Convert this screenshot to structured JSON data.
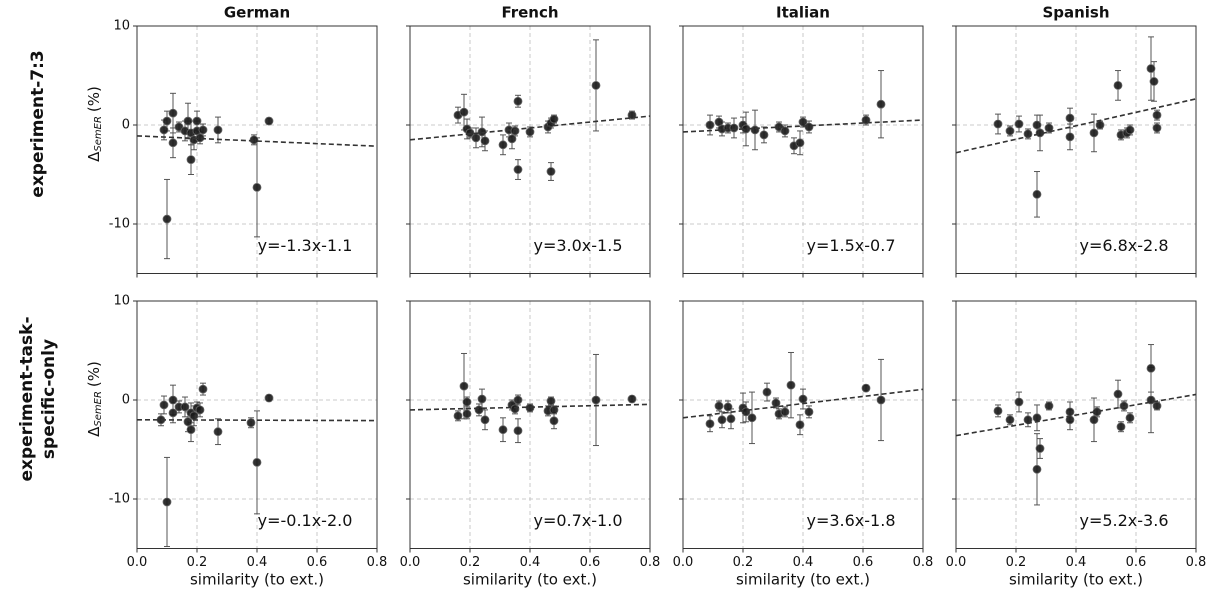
{
  "chart_data": [
    {
      "type": "scatter",
      "title": "German",
      "row_label": [
        "experiment-7:3"
      ],
      "ylabel": [
        "Δ",
        "SemER",
        "(%)"
      ],
      "x": [
        0.09,
        0.1,
        0.1,
        0.12,
        0.12,
        0.14,
        0.16,
        0.17,
        0.18,
        0.18,
        0.19,
        0.2,
        0.2,
        0.21,
        0.22,
        0.27,
        0.39,
        0.4,
        0.44
      ],
      "y": [
        -0.5,
        0.4,
        -9.5,
        1.2,
        -1.8,
        -0.2,
        -0.6,
        0.4,
        -3.5,
        -0.8,
        -1.5,
        0.4,
        -0.6,
        -1.3,
        -0.5,
        -0.5,
        -1.5,
        -6.3,
        0.4
      ],
      "error": [
        1,
        1,
        4,
        2,
        1.5,
        0.5,
        1,
        1.8,
        1.5,
        1.2,
        1,
        1,
        1,
        0.6,
        0.6,
        1.3,
        0.5,
        5,
        0.3
      ],
      "fit": {
        "slope": -1.3,
        "intercept": -1.1
      },
      "annotation": "y=-1.3x-1.1",
      "xlim": [
        0,
        0.8
      ],
      "ylim": [
        -15,
        10
      ],
      "xticks": [
        {
          "value": 0,
          "label": "0.0"
        },
        0.2,
        0.4,
        0.6,
        0.8
      ],
      "yticks": [
        -10,
        0,
        10
      ],
      "grid": true,
      "color": "#1a1a1a"
    },
    {
      "type": "scatter",
      "title": "French",
      "x": [
        0.16,
        0.18,
        0.19,
        0.2,
        0.22,
        0.24,
        0.25,
        0.31,
        0.33,
        0.34,
        0.35,
        0.36,
        0.36,
        0.4,
        0.46,
        0.47,
        0.48,
        0.47,
        0.62,
        0.74
      ],
      "y": [
        1.0,
        1.3,
        -0.4,
        -0.8,
        -1.3,
        -0.7,
        -1.6,
        -2.0,
        -0.5,
        -1.4,
        -0.6,
        -4.5,
        2.4,
        -0.7,
        -0.2,
        0.2,
        0.6,
        -4.7,
        4.0,
        1.0
      ],
      "error": [
        0.8,
        1.8,
        1,
        0.5,
        1,
        1.5,
        1,
        1,
        0.7,
        1,
        0.5,
        1,
        0.6,
        0.5,
        0.6,
        0.5,
        0.4,
        0.9,
        4.6,
        0.4
      ],
      "fit": {
        "slope": 3.0,
        "intercept": -1.5
      },
      "annotation": "y=3.0x-1.5",
      "xlim": [
        0,
        0.8
      ],
      "ylim": [
        -15,
        10
      ],
      "xticks": [
        {
          "value": 0,
          "label": "0.0"
        },
        0.2,
        0.4,
        0.6,
        0.8
      ],
      "yticks": [
        -10,
        0,
        10
      ],
      "grid": true,
      "color": "#1a1a1a"
    },
    {
      "type": "scatter",
      "title": "Italian",
      "x": [
        0.09,
        0.12,
        0.13,
        0.15,
        0.17,
        0.2,
        0.21,
        0.24,
        0.27,
        0.32,
        0.34,
        0.37,
        0.39,
        0.4,
        0.42,
        0.61,
        0.66
      ],
      "y": [
        0,
        0.3,
        -0.4,
        -0.3,
        -0.3,
        0,
        -0.4,
        -0.5,
        -1.0,
        -0.2,
        -0.6,
        -2.1,
        -1.8,
        0.3,
        -0.2,
        0.5,
        2.1
      ],
      "error": [
        1,
        0.6,
        0.7,
        0.5,
        1,
        0.8,
        1.7,
        2,
        0.8,
        0.5,
        0.6,
        0.8,
        1.2,
        0.5,
        0.6,
        0.5,
        3.4
      ],
      "fit": {
        "slope": 1.5,
        "intercept": -0.7
      },
      "annotation": "y=1.5x-0.7",
      "xlim": [
        0,
        0.8
      ],
      "ylim": [
        -15,
        10
      ],
      "xticks": [
        {
          "value": 0,
          "label": "0.0"
        },
        0.2,
        0.4,
        0.6,
        0.8
      ],
      "yticks": [
        -10,
        0,
        10
      ],
      "grid": true,
      "color": "#1a1a1a"
    },
    {
      "type": "scatter",
      "title": "Spanish",
      "x": [
        0.14,
        0.18,
        0.21,
        0.24,
        0.27,
        0.27,
        0.28,
        0.31,
        0.38,
        0.38,
        0.46,
        0.48,
        0.54,
        0.55,
        0.57,
        0.58,
        0.65,
        0.66,
        0.67,
        0.67
      ],
      "y": [
        0.1,
        -0.6,
        0.1,
        -0.9,
        -7.0,
        0,
        -0.8,
        -0.3,
        0.7,
        -1.2,
        -0.8,
        0,
        4.0,
        -1.0,
        -0.8,
        -0.5,
        5.7,
        4.4,
        1.0,
        -0.3
      ],
      "error": [
        1,
        0.5,
        0.8,
        0.5,
        2.3,
        1,
        1.8,
        0.5,
        1,
        1.3,
        1.9,
        0.4,
        1.5,
        0.5,
        0.5,
        0.5,
        3.2,
        2,
        0.5,
        0.5
      ],
      "fit": {
        "slope": 6.8,
        "intercept": -2.8
      },
      "annotation": "y=6.8x-2.8",
      "xlim": [
        0,
        0.8
      ],
      "ylim": [
        -15,
        10
      ],
      "xticks": [
        {
          "value": 0,
          "label": "0.0"
        },
        0.2,
        0.4,
        0.6,
        0.8
      ],
      "yticks": [
        -10,
        0,
        10
      ],
      "grid": true,
      "color": "#1a1a1a"
    },
    {
      "type": "scatter",
      "row_label": [
        "experiment-task-",
        "specific-only"
      ],
      "ylabel": [
        "Δ",
        "SemER",
        "(%)"
      ],
      "xlabel": "similarity (to ext.)",
      "x": [
        0.09,
        0.08,
        0.1,
        0.12,
        0.12,
        0.14,
        0.16,
        0.17,
        0.18,
        0.18,
        0.19,
        0.2,
        0.21,
        0.22,
        0.27,
        0.38,
        0.4,
        0.44
      ],
      "y": [
        -0.5,
        -2.0,
        -10.3,
        0,
        -1.3,
        -0.7,
        -0.7,
        -2.2,
        -3.0,
        -1.3,
        -1.6,
        -0.8,
        -1.0,
        1.1,
        -3.2,
        -2.3,
        -6.3,
        0.2
      ],
      "error": [
        0.9,
        0.6,
        4.5,
        1.5,
        1,
        0.6,
        1,
        1,
        1.2,
        1,
        1,
        0.6,
        0.7,
        0.6,
        1.3,
        0.5,
        5.2,
        0.3
      ],
      "fit": {
        "slope": -0.1,
        "intercept": -2.0
      },
      "annotation": "y=-0.1x-2.0",
      "xlim": [
        0,
        0.8
      ],
      "ylim": [
        -15,
        10
      ],
      "xticks": [
        {
          "value": 0,
          "label": "0.0"
        },
        0.2,
        0.4,
        0.6,
        0.8
      ],
      "yticks": [
        -10,
        0,
        10
      ],
      "grid": true,
      "color": "#1a1a1a"
    },
    {
      "type": "scatter",
      "xlabel": "similarity (to ext.)",
      "x": [
        0.16,
        0.18,
        0.19,
        0.19,
        0.23,
        0.24,
        0.25,
        0.31,
        0.34,
        0.35,
        0.36,
        0.36,
        0.4,
        0.46,
        0.47,
        0.48,
        0.48,
        0.62,
        0.74
      ],
      "y": [
        -1.6,
        1.4,
        -0.2,
        -1.4,
        -1.0,
        0.1,
        -2.0,
        -3.0,
        -0.5,
        -0.9,
        0,
        -3.1,
        -0.8,
        -1.1,
        -0.1,
        -2.1,
        -1.0,
        0,
        0.1
      ],
      "error": [
        0.5,
        3.3,
        0.5,
        0.5,
        0.6,
        1,
        1,
        1.2,
        0.5,
        0.5,
        0.5,
        1.2,
        0.4,
        0.5,
        0.4,
        0.8,
        0.4,
        4.6,
        0.3
      ],
      "fit": {
        "slope": 0.7,
        "intercept": -1.0
      },
      "annotation": "y=0.7x-1.0",
      "xlim": [
        0,
        0.8
      ],
      "ylim": [
        -15,
        10
      ],
      "xticks": [
        {
          "value": 0,
          "label": "0.0"
        },
        0.2,
        0.4,
        0.6,
        0.8
      ],
      "yticks": [
        -10,
        0,
        10
      ],
      "grid": true,
      "color": "#1a1a1a"
    },
    {
      "type": "scatter",
      "xlabel": "similarity (to ext.)",
      "x": [
        0.09,
        0.12,
        0.13,
        0.15,
        0.16,
        0.2,
        0.21,
        0.23,
        0.28,
        0.31,
        0.32,
        0.34,
        0.36,
        0.39,
        0.4,
        0.42,
        0.61,
        0.66
      ],
      "y": [
        -2.4,
        -0.6,
        -2.0,
        -0.7,
        -1.9,
        -0.8,
        -1.2,
        -1.8,
        0.8,
        -0.3,
        -1.4,
        -1.2,
        1.5,
        -2.5,
        0.1,
        -1.2,
        1.2,
        0
      ],
      "error": [
        0.8,
        0.5,
        0.8,
        0.6,
        1,
        1.5,
        1,
        2.6,
        0.9,
        0.5,
        0.5,
        0.5,
        3.3,
        1,
        1,
        0.6,
        0.3,
        4.1
      ],
      "fit": {
        "slope": 3.6,
        "intercept": -1.8
      },
      "annotation": "y=3.6x-1.8",
      "xlim": [
        0,
        0.8
      ],
      "ylim": [
        -15,
        10
      ],
      "xticks": [
        {
          "value": 0,
          "label": "0.0"
        },
        0.2,
        0.4,
        0.6,
        0.8
      ],
      "yticks": [
        -10,
        0,
        10
      ],
      "grid": true,
      "color": "#1a1a1a"
    },
    {
      "type": "scatter",
      "xlabel": "similarity (to ext.)",
      "x": [
        0.14,
        0.18,
        0.21,
        0.24,
        0.27,
        0.27,
        0.28,
        0.31,
        0.38,
        0.38,
        0.46,
        0.47,
        0.54,
        0.55,
        0.56,
        0.58,
        0.65,
        0.65,
        0.67
      ],
      "y": [
        -1.1,
        -2.0,
        -0.2,
        -2.0,
        -7.0,
        -1.8,
        -4.9,
        -0.6,
        -1.2,
        -2.0,
        -2.0,
        -1.2,
        0.6,
        -2.7,
        -0.6,
        -1.8,
        3.2,
        0,
        -0.6
      ],
      "error": [
        0.6,
        0.5,
        1,
        0.7,
        3.6,
        1.3,
        1,
        0.4,
        1,
        1,
        2.2,
        0.5,
        1.4,
        0.5,
        0.5,
        0.5,
        2.4,
        3.3,
        0.4
      ],
      "fit": {
        "slope": 5.2,
        "intercept": -3.6
      },
      "annotation": "y=5.2x-3.6",
      "xlim": [
        0,
        0.8
      ],
      "ylim": [
        -15,
        10
      ],
      "xticks": [
        {
          "value": 0,
          "label": "0.0"
        },
        0.2,
        0.4,
        0.6,
        0.8
      ],
      "yticks": [
        -10,
        0,
        10
      ],
      "grid": true,
      "color": "#1a1a1a"
    }
  ]
}
